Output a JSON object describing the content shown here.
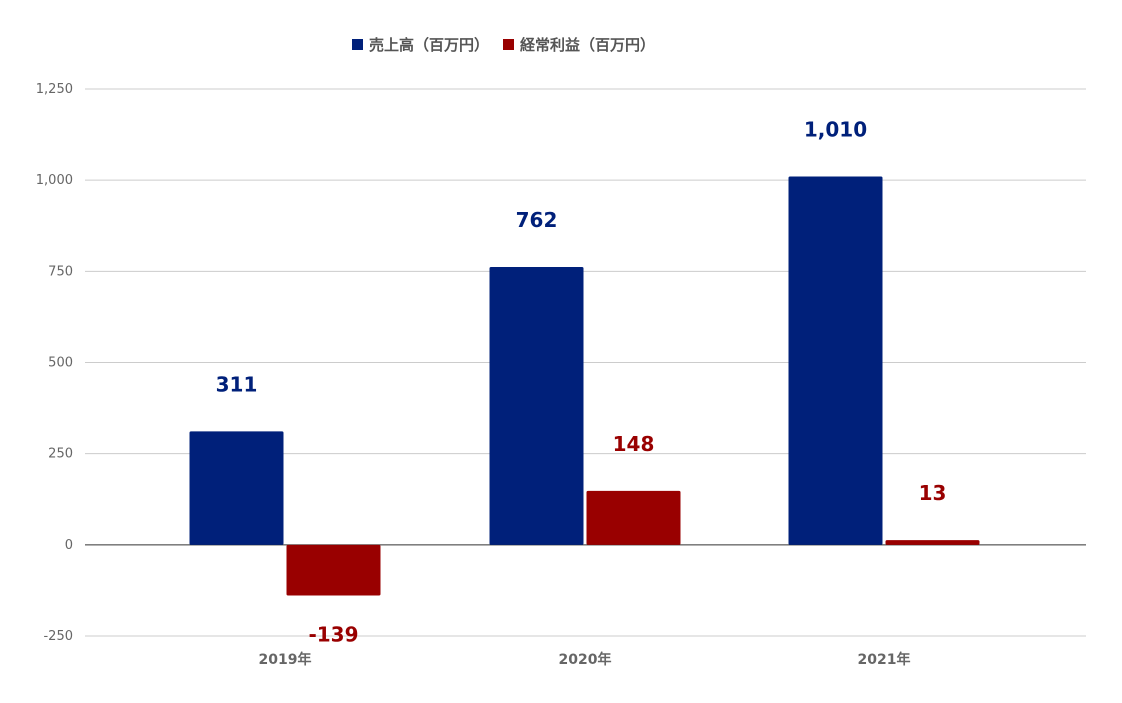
{
  "chart_data": {
    "type": "bar",
    "categories": [
      "2019年",
      "2020年",
      "2021年"
    ],
    "series": [
      {
        "name": "売上高（百万円）",
        "values": [
          311,
          762,
          1010
        ],
        "labels": [
          "311",
          "762",
          "1,010"
        ],
        "color": "#00207a"
      },
      {
        "name": "経常利益（百万円）",
        "values": [
          -139,
          148,
          13
        ],
        "labels": [
          "-139",
          "148",
          "13"
        ],
        "color": "#990000"
      }
    ],
    "ylim": [
      -250,
      1250
    ],
    "yticks": [
      -250,
      0,
      250,
      500,
      750,
      1000,
      1250
    ],
    "ytick_labels": [
      "-250",
      "0",
      "250",
      "500",
      "750",
      "1,000",
      "1,250"
    ],
    "grid": true,
    "legend_position": "top",
    "title": "",
    "xlabel": "",
    "ylabel": ""
  }
}
